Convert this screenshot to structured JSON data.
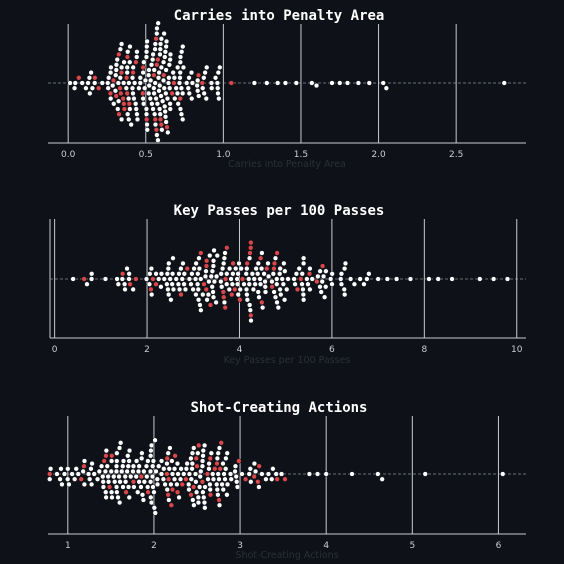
{
  "colors": {
    "background": "#0e1117",
    "point_default": "#ffffff",
    "point_highlight": "#d9474a",
    "gridline": "#c8ccd2",
    "median_line": "#8a8f98"
  },
  "chart_data": [
    {
      "type": "scatter",
      "subtype": "beeswarm",
      "title": "Carries into Penalty Area",
      "xlabel": "Carries into Penalty Area",
      "xlim": [
        -0.13,
        2.95
      ],
      "xticks": [
        0.0,
        0.5,
        1.0,
        1.5,
        2.0,
        2.5
      ],
      "xtick_labels": [
        "0.0",
        "0.5",
        "1.0",
        "1.5",
        "2.0",
        "2.5"
      ],
      "grid": "vertical",
      "peak": 0.55,
      "spread": 0.6,
      "n_points": 240,
      "n_highlight": 42,
      "outliers": [
        1.2,
        1.28,
        1.35,
        1.4,
        1.47,
        1.57,
        1.6,
        1.7,
        1.75,
        1.8,
        1.87,
        1.94,
        2.03,
        2.05,
        2.81
      ]
    },
    {
      "type": "scatter",
      "subtype": "beeswarm",
      "title": "Key Passes per 100 Passes",
      "xlabel": "Key Passes per 100 Passes",
      "xlim": [
        -0.1,
        10.2
      ],
      "xticks": [
        0,
        2,
        4,
        6,
        8,
        10
      ],
      "xtick_labels": [
        "0",
        "2",
        "4",
        "6",
        "8",
        "10"
      ],
      "grid": "vertical",
      "peak": 4.0,
      "spread": 3.5,
      "n_points": 250,
      "n_highlight": 44,
      "outliers": [
        0.4,
        0.7,
        0.8,
        1.1,
        1.7,
        2.1,
        2.3,
        2.5,
        6.8,
        7.0,
        7.2,
        7.4,
        7.7,
        8.1,
        8.3,
        8.6,
        9.2,
        9.5,
        9.8
      ]
    },
    {
      "type": "scatter",
      "subtype": "beeswarm",
      "title": "Shot-Creating Actions",
      "xlabel": "Shot-Creating Actions",
      "xlim": [
        0.77,
        6.32
      ],
      "xticks": [
        1,
        2,
        3,
        4,
        5,
        6
      ],
      "xtick_labels": [
        "1",
        "2",
        "3",
        "4",
        "5",
        "6"
      ],
      "grid": "vertical",
      "peak": 2.2,
      "spread": 1.8,
      "n_points": 260,
      "n_highlight": 44,
      "outliers": [
        1.0,
        1.05,
        3.9,
        4.0,
        4.3,
        4.6,
        4.65,
        5.15,
        6.05
      ]
    }
  ]
}
